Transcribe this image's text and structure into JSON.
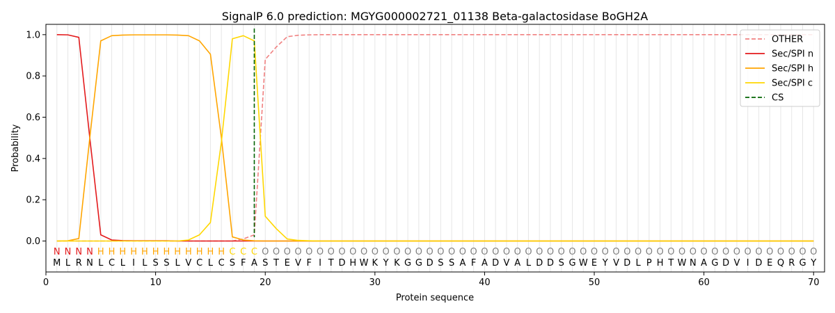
{
  "chart_data": {
    "type": "line",
    "title": "SignalP 6.0 prediction: MGYG000002721_01138 Beta-galactosidase BoGH2A",
    "xlabel": "Protein sequence",
    "ylabel": "Probability",
    "xlim": [
      0,
      71
    ],
    "ylim": [
      -0.15,
      1.05
    ],
    "xticks": [
      0,
      10,
      20,
      30,
      40,
      50,
      60,
      70
    ],
    "yticks": [
      0.0,
      0.2,
      0.4,
      0.6,
      0.8,
      1.0
    ],
    "ytick_labels": [
      "0.0",
      "0.2",
      "0.4",
      "0.6",
      "0.8",
      "1.0"
    ],
    "x": [
      1,
      2,
      3,
      4,
      5,
      6,
      7,
      8,
      9,
      10,
      11,
      12,
      13,
      14,
      15,
      16,
      17,
      18,
      19,
      20,
      21,
      22,
      23,
      24,
      25,
      26,
      27,
      28,
      29,
      30,
      31,
      32,
      33,
      34,
      35,
      36,
      37,
      38,
      39,
      40,
      41,
      42,
      43,
      44,
      45,
      46,
      47,
      48,
      49,
      50,
      51,
      52,
      53,
      54,
      55,
      56,
      57,
      58,
      59,
      60,
      61,
      62,
      63,
      64,
      65,
      66,
      67,
      68,
      69,
      70
    ],
    "sequence": [
      "M",
      "L",
      "R",
      "N",
      "L",
      "C",
      "L",
      "I",
      "L",
      "S",
      "S",
      "L",
      "V",
      "C",
      "L",
      "C",
      "S",
      "F",
      "A",
      "S",
      "T",
      "E",
      "V",
      "F",
      "I",
      "T",
      "D",
      "H",
      "W",
      "K",
      "Y",
      "K",
      "G",
      "G",
      "D",
      "S",
      "S",
      "A",
      "F",
      "A",
      "D",
      "V",
      "A",
      "L",
      "D",
      "D",
      "S",
      "G",
      "W",
      "E",
      "Y",
      "V",
      "D",
      "L",
      "P",
      "H",
      "T",
      "W",
      "N",
      "A",
      "G",
      "D",
      "V",
      "I",
      "D",
      "E",
      "Q",
      "R",
      "G",
      "Y"
    ],
    "region_labels": [
      "N",
      "N",
      "N",
      "N",
      "H",
      "H",
      "H",
      "H",
      "H",
      "H",
      "H",
      "H",
      "H",
      "H",
      "H",
      "H",
      "C",
      "C",
      "C",
      "O",
      "O",
      "O",
      "O",
      "O",
      "O",
      "O",
      "O",
      "O",
      "O",
      "O",
      "O",
      "O",
      "O",
      "O",
      "O",
      "O",
      "O",
      "O",
      "O",
      "O",
      "O",
      "O",
      "O",
      "O",
      "O",
      "O",
      "O",
      "O",
      "O",
      "O",
      "O",
      "O",
      "O",
      "O",
      "O",
      "O",
      "O",
      "O",
      "O",
      "O",
      "O",
      "O",
      "O",
      "O",
      "O",
      "O",
      "O",
      "O",
      "O",
      "O"
    ],
    "region_colors": {
      "N": "#e31a1c",
      "H": "#ffa500",
      "C": "#ffd700",
      "O": "#808080"
    },
    "cs_position": 19,
    "legend_position": "top-right",
    "series": [
      {
        "name": "OTHER",
        "color": "#f08080",
        "dash": true,
        "values": [
          0,
          0,
          0,
          0,
          0,
          0,
          0,
          0,
          0,
          0,
          0,
          0,
          0,
          0,
          0,
          0,
          0,
          0.01,
          0.03,
          0.88,
          0.94,
          0.99,
          0.997,
          0.999,
          1,
          1,
          1,
          1,
          1,
          1,
          1,
          1,
          1,
          1,
          1,
          1,
          1,
          1,
          1,
          1,
          1,
          1,
          1,
          1,
          1,
          1,
          1,
          1,
          1,
          1,
          1,
          1,
          1,
          1,
          1,
          1,
          1,
          1,
          1,
          1,
          1,
          1,
          1,
          1,
          1,
          1,
          1,
          1,
          1,
          1
        ]
      },
      {
        "name": "Sec/SPI n",
        "color": "#e31a1c",
        "dash": false,
        "values": [
          1.0,
          0.999,
          0.987,
          0.5,
          0.03,
          0.005,
          0.002,
          0.001,
          0.001,
          0.001,
          0.001,
          0,
          0,
          0,
          0,
          0,
          0,
          0,
          0,
          0,
          0,
          0,
          0,
          0,
          0,
          0,
          0,
          0,
          0,
          0,
          0,
          0,
          0,
          0,
          0,
          0,
          0,
          0,
          0,
          0,
          0,
          0,
          0,
          0,
          0,
          0,
          0,
          0,
          0,
          0,
          0,
          0,
          0,
          0,
          0,
          0,
          0,
          0,
          0,
          0,
          0,
          0,
          0,
          0,
          0,
          0,
          0,
          0,
          0,
          0
        ]
      },
      {
        "name": "Sec/SPI h",
        "color": "#ffa500",
        "dash": false,
        "values": [
          0,
          0.001,
          0.012,
          0.5,
          0.97,
          0.995,
          0.998,
          0.999,
          0.999,
          0.999,
          0.999,
          0.998,
          0.995,
          0.97,
          0.905,
          0.5,
          0.02,
          0.005,
          0.001,
          0,
          0,
          0,
          0,
          0,
          0,
          0,
          0,
          0,
          0,
          0,
          0,
          0,
          0,
          0,
          0,
          0,
          0,
          0,
          0,
          0,
          0,
          0,
          0,
          0,
          0,
          0,
          0,
          0,
          0,
          0,
          0,
          0,
          0,
          0,
          0,
          0,
          0,
          0,
          0,
          0,
          0,
          0,
          0,
          0,
          0,
          0,
          0,
          0,
          0,
          0
        ]
      },
      {
        "name": "Sec/SPI c",
        "color": "#ffd700",
        "dash": false,
        "values": [
          0,
          0,
          0,
          0,
          0,
          0,
          0,
          0,
          0,
          0,
          0,
          0,
          0.005,
          0.03,
          0.09,
          0.48,
          0.98,
          0.995,
          0.97,
          0.12,
          0.06,
          0.01,
          0.003,
          0.001,
          0,
          0,
          0,
          0,
          0,
          0,
          0,
          0,
          0,
          0,
          0,
          0,
          0,
          0,
          0,
          0,
          0,
          0,
          0,
          0,
          0,
          0,
          0,
          0,
          0,
          0,
          0,
          0,
          0,
          0,
          0,
          0,
          0,
          0,
          0,
          0,
          0,
          0,
          0,
          0,
          0,
          0,
          0,
          0,
          0,
          0
        ]
      }
    ],
    "cs_series": {
      "name": "CS",
      "color": "#006400"
    }
  }
}
